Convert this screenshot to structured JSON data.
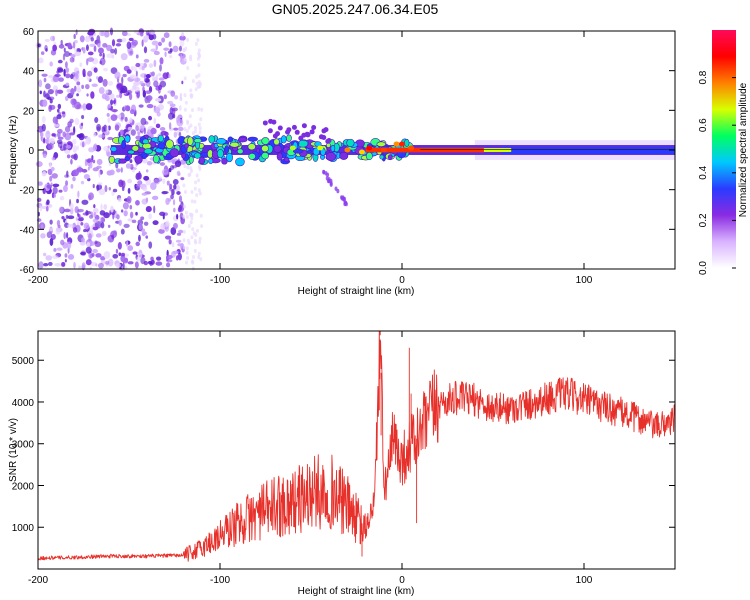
{
  "title": "GN05.2025.247.06.34.E05",
  "chart_data": [
    {
      "type": "heatmap",
      "xlabel": "Height of straight line (km)",
      "ylabel": "Frequency (Hz)",
      "xlim": [
        -200,
        150
      ],
      "ylim": [
        -60,
        60
      ],
      "xticks": [
        -200,
        -100,
        0,
        100
      ],
      "xtick_labels": [
        "-200",
        "-100",
        "0",
        "100"
      ],
      "yticks": [
        60,
        40,
        20,
        0,
        -20,
        -40,
        -60
      ],
      "ytick_labels": [
        "60",
        "40",
        "20",
        "0",
        "-20",
        "-40",
        "-60"
      ],
      "colorbar": {
        "label": "Normalized spectral amplitude",
        "range": [
          0,
          1
        ],
        "ticks": [
          0.0,
          0.2,
          0.4,
          0.6,
          0.8
        ],
        "tick_labels": [
          "0.0",
          "0.2",
          "0.4",
          "0.6",
          "0.8"
        ],
        "colors": [
          "#ffffff",
          "#d9b3ff",
          "#8a2be2",
          "#2a3bff",
          "#00c8ff",
          "#00ff60",
          "#d8ff00",
          "#ff8000",
          "#ff0000",
          "#ff0a5a"
        ]
      },
      "scatter_region": {
        "x": [
          -200,
          -120
        ],
        "y": [
          -60,
          60
        ]
      },
      "band_region": {
        "x": [
          -170,
          150
        ],
        "y": [
          -5,
          5
        ]
      }
    },
    {
      "type": "line",
      "xlabel": "Height of straight line (km)",
      "ylabel": "SNR (10 * v/v)",
      "xlim": [
        -200,
        150
      ],
      "ylim": [
        0,
        5700
      ],
      "xticks": [
        -200,
        -100,
        0,
        100
      ],
      "xtick_labels": [
        "-200",
        "-100",
        "0",
        "100"
      ],
      "yticks": [
        1000,
        2000,
        3000,
        4000,
        5000
      ],
      "ytick_labels": [
        "1000",
        "2000",
        "3000",
        "4000",
        "5000"
      ],
      "line_color": "#e8302a",
      "series": [
        {
          "name": "SNR",
          "x": [
            -200,
            -180,
            -160,
            -140,
            -120,
            -110,
            -100,
            -90,
            -80,
            -70,
            -60,
            -50,
            -40,
            -30,
            -20,
            -15,
            -12,
            -10,
            -8,
            -5,
            0,
            5,
            10,
            15,
            20,
            30,
            40,
            50,
            60,
            70,
            80,
            90,
            100,
            110,
            120,
            130,
            140,
            150
          ],
          "values": [
            250,
            270,
            300,
            300,
            320,
            500,
            800,
            1100,
            1300,
            1500,
            1600,
            1800,
            1900,
            1500,
            900,
            1700,
            5600,
            2000,
            2200,
            3100,
            2600,
            3000,
            3200,
            3700,
            3950,
            4100,
            4050,
            3850,
            3850,
            3950,
            4100,
            4200,
            4050,
            3900,
            3750,
            3600,
            3400,
            3600
          ]
        }
      ]
    }
  ]
}
